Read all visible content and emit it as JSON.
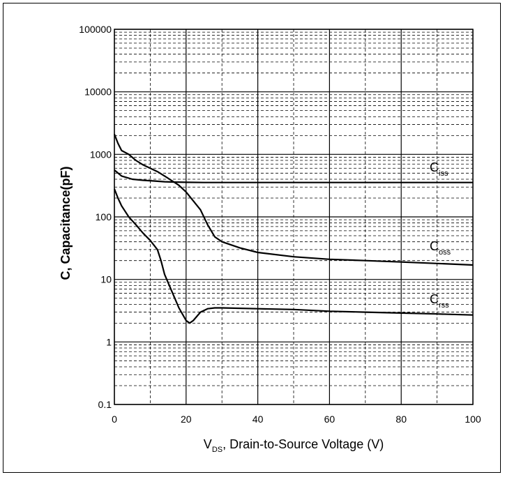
{
  "chart_data": {
    "type": "line",
    "xlabel_main": "V",
    "xlabel_sub": "DS",
    "xlabel_rest": ", Drain-to-Source Voltage (V)",
    "ylabel": "C, Capacitance(pF)",
    "xlim": [
      0,
      100
    ],
    "ylim": [
      0.1,
      100000
    ],
    "yscale": "log",
    "x_ticks": [
      "0",
      "20",
      "40",
      "60",
      "80",
      "100"
    ],
    "y_ticks": [
      "0.1",
      "1",
      "10",
      "100",
      "1000",
      "10000",
      "100000"
    ],
    "grid": true,
    "series": [
      {
        "label_main": "C",
        "label_sub": "iss",
        "x": [
          0,
          2,
          5,
          8,
          11,
          14,
          17,
          20,
          25,
          30,
          40,
          50,
          60,
          70,
          80,
          90,
          100
        ],
        "values": [
          560,
          450,
          400,
          385,
          375,
          365,
          360,
          357,
          355,
          355,
          355,
          355,
          355,
          355,
          355,
          355,
          355
        ]
      },
      {
        "label_main": "C",
        "label_sub": "oss",
        "x": [
          0,
          1,
          2,
          4,
          6,
          8,
          10,
          12,
          14,
          16,
          18,
          20,
          22,
          24,
          26,
          28,
          30,
          35,
          40,
          50,
          60,
          70,
          80,
          90,
          100
        ],
        "values": [
          2100,
          1500,
          1150,
          1000,
          800,
          680,
          600,
          530,
          450,
          380,
          320,
          250,
          180,
          130,
          75,
          48,
          40,
          32,
          27,
          23,
          21,
          20,
          19,
          18,
          17
        ]
      },
      {
        "label_main": "C",
        "label_sub": "rss",
        "x": [
          0,
          1,
          2,
          4,
          6,
          8,
          10,
          12,
          13,
          14,
          16,
          18,
          20,
          21,
          22,
          24,
          26,
          28,
          30,
          40,
          50,
          60,
          70,
          80,
          90,
          100
        ],
        "values": [
          280,
          200,
          150,
          100,
          75,
          55,
          42,
          30,
          20,
          12,
          6.5,
          3.5,
          2.2,
          2.0,
          2.2,
          3.0,
          3.4,
          3.5,
          3.5,
          3.4,
          3.3,
          3.1,
          3.0,
          2.9,
          2.8,
          2.7
        ]
      }
    ]
  }
}
